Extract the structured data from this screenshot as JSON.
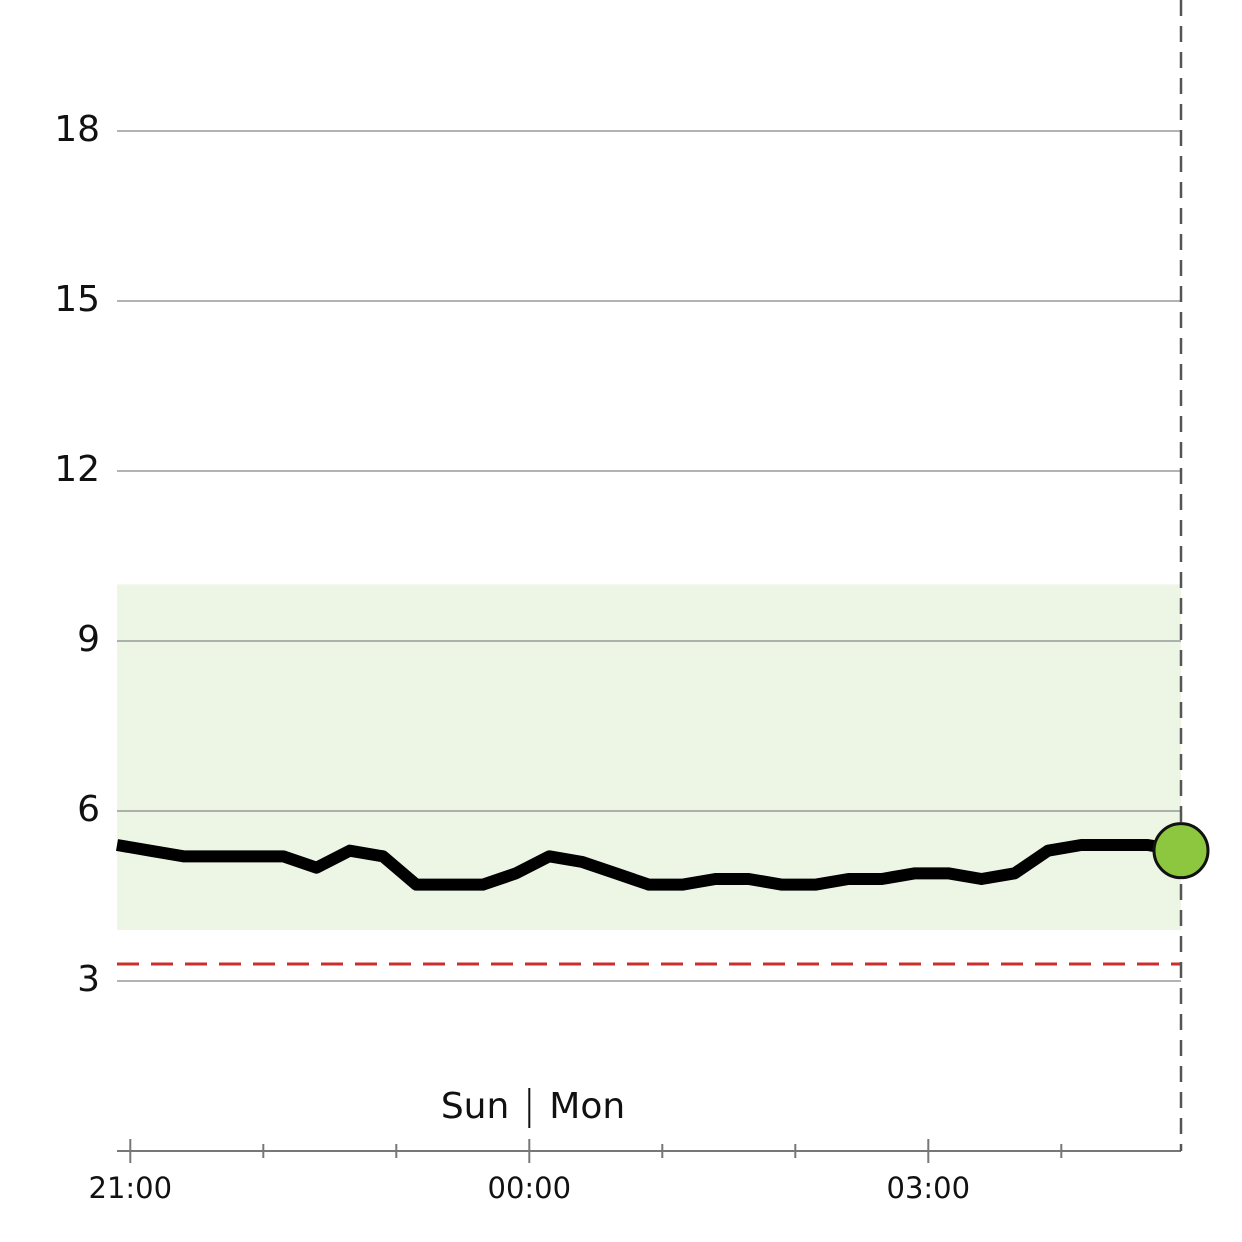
{
  "chart_data": {
    "type": "line",
    "x": [
      20.9,
      21.15,
      21.4,
      21.65,
      21.9,
      22.15,
      22.4,
      22.65,
      22.9,
      23.15,
      23.4,
      23.65,
      23.9,
      24.15,
      24.4,
      24.65,
      24.9,
      25.15,
      25.4,
      25.65,
      25.9,
      26.15,
      26.4,
      26.65,
      26.9,
      27.15,
      27.4,
      27.65,
      27.9,
      28.15,
      28.4,
      28.65,
      28.9
    ],
    "values": [
      5.4,
      5.3,
      5.2,
      5.2,
      5.2,
      5.2,
      5.0,
      5.3,
      5.2,
      4.7,
      4.7,
      4.7,
      4.9,
      5.2,
      5.1,
      4.9,
      4.7,
      4.7,
      4.8,
      4.8,
      4.7,
      4.7,
      4.8,
      4.8,
      4.9,
      4.9,
      4.8,
      4.9,
      5.3,
      5.4,
      5.4,
      5.4,
      5.3
    ],
    "color": "#000000",
    "marker_color": "#8dc63f",
    "target_range": [
      3.9,
      10
    ],
    "target_color": "#edf5e5",
    "low_threshold": 3.3,
    "low_color": "#c9302c",
    "xlim": [
      20.9,
      28.9
    ],
    "xticks": [
      {
        "value": 21,
        "label": "21:00"
      },
      {
        "value": 24,
        "label": "00:00"
      },
      {
        "value": 27,
        "label": "03:00"
      }
    ],
    "minor_xticks": [
      22,
      23,
      25,
      26,
      28
    ],
    "ylim": [
      0,
      20
    ],
    "yticks": [
      3,
      6,
      9,
      12,
      15,
      18
    ],
    "grid": true,
    "day_change": 24,
    "day_labels": [
      "Sun",
      "Mon"
    ]
  }
}
